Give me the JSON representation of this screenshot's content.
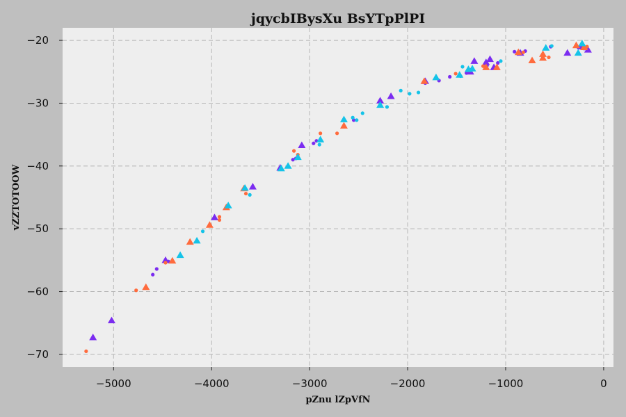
{
  "chart_data": {
    "type": "scatter",
    "title": "jqycbIBysXu BsYTpPlPI",
    "xlabel": "pZnu lZpVfN",
    "ylabel": "vZZTOTOOW",
    "xlim": [
      -5520,
      100
    ],
    "ylim": [
      -72,
      -18
    ],
    "xticks": [
      -5000,
      -4000,
      -3000,
      -2000,
      -1000,
      0
    ],
    "yticks": [
      -20,
      -30,
      -40,
      -50,
      -60,
      -70
    ],
    "xtick_labels": [
      "−5000",
      "−4000",
      "−3000",
      "−2000",
      "−1000",
      "0"
    ],
    "ytick_labels": [
      "−20",
      "−30",
      "−40",
      "−50",
      "−60",
      "−70"
    ],
    "grid": true,
    "background": "#eeeeee",
    "colors": [
      "#7b2cf0",
      "#ff6b3d",
      "#15c3e8"
    ],
    "series": [
      {
        "color": "#7b2cf0",
        "marker": "triangle",
        "points": [
          [
            -5210,
            -67.3
          ],
          [
            -5020,
            -64.6
          ],
          [
            -4470,
            -55.0
          ],
          [
            -3970,
            -48.2
          ],
          [
            -3580,
            -43.3
          ],
          [
            -3300,
            -40.3
          ],
          [
            -3080,
            -36.7
          ],
          [
            -2280,
            -29.6
          ],
          [
            -2170,
            -28.9
          ],
          [
            -1820,
            -26.5
          ],
          [
            -1360,
            -25.0
          ],
          [
            -1320,
            -23.3
          ],
          [
            -1200,
            -23.5
          ],
          [
            -1160,
            -23.0
          ],
          [
            -1120,
            -24.3
          ],
          [
            -850,
            -22.0
          ],
          [
            -370,
            -22.0
          ],
          [
            -230,
            -21.0
          ],
          [
            -160,
            -21.5
          ]
        ]
      },
      {
        "color": "#7b2cf0",
        "marker": "dot",
        "points": [
          [
            -4600,
            -57.3
          ],
          [
            -4560,
            -56.4
          ],
          [
            -4440,
            -55.2
          ],
          [
            -3140,
            -38.8
          ],
          [
            -3170,
            -39.0
          ],
          [
            -2960,
            -36.4
          ],
          [
            -2930,
            -36.0
          ],
          [
            -2550,
            -32.7
          ],
          [
            -1820,
            -26.8
          ],
          [
            -1680,
            -26.4
          ],
          [
            -1570,
            -25.8
          ],
          [
            -1400,
            -25.2
          ],
          [
            -1190,
            -24.0
          ],
          [
            -1080,
            -23.6
          ],
          [
            -910,
            -21.8
          ],
          [
            -800,
            -21.7
          ],
          [
            -540,
            -21.0
          ],
          [
            -260,
            -21.1
          ],
          [
            -200,
            -21.3
          ]
        ]
      },
      {
        "color": "#ff6b3d",
        "marker": "triangle",
        "points": [
          [
            -4670,
            -59.3
          ],
          [
            -4400,
            -55.1
          ],
          [
            -4220,
            -52.1
          ],
          [
            -4020,
            -49.4
          ],
          [
            -3850,
            -46.6
          ],
          [
            -3670,
            -43.6
          ],
          [
            -2650,
            -33.6
          ],
          [
            -1830,
            -26.5
          ],
          [
            -1200,
            -24.3
          ],
          [
            -1090,
            -24.3
          ],
          [
            -870,
            -21.9
          ],
          [
            -730,
            -23.2
          ],
          [
            -620,
            -22.2
          ],
          [
            -620,
            -22.8
          ],
          [
            -280,
            -20.8
          ],
          [
            -200,
            -21.1
          ]
        ]
      },
      {
        "color": "#ff6b3d",
        "marker": "dot",
        "points": [
          [
            -5280,
            -69.5
          ],
          [
            -4770,
            -59.8
          ],
          [
            -4470,
            -55.4
          ],
          [
            -3920,
            -48.1
          ],
          [
            -3920,
            -48.6
          ],
          [
            -3650,
            -44.4
          ],
          [
            -3120,
            -38.2
          ],
          [
            -3160,
            -37.6
          ],
          [
            -2890,
            -34.8
          ],
          [
            -2720,
            -34.8
          ],
          [
            -1510,
            -25.3
          ],
          [
            -1230,
            -24.1
          ],
          [
            -820,
            -21.9
          ],
          [
            -560,
            -22.7
          ],
          [
            -170,
            -21.0
          ]
        ]
      },
      {
        "color": "#15c3e8",
        "marker": "triangle",
        "points": [
          [
            -4320,
            -54.2
          ],
          [
            -4150,
            -51.9
          ],
          [
            -3830,
            -46.3
          ],
          [
            -3660,
            -43.5
          ],
          [
            -3290,
            -40.4
          ],
          [
            -3220,
            -40.0
          ],
          [
            -3120,
            -38.6
          ],
          [
            -2890,
            -35.8
          ],
          [
            -2650,
            -32.6
          ],
          [
            -2280,
            -30.3
          ],
          [
            -1710,
            -25.9
          ],
          [
            -1470,
            -25.5
          ],
          [
            -1380,
            -24.6
          ],
          [
            -1340,
            -24.5
          ],
          [
            -590,
            -21.2
          ],
          [
            -260,
            -22.0
          ],
          [
            -220,
            -20.5
          ]
        ]
      },
      {
        "color": "#15c3e8",
        "marker": "dot",
        "points": [
          [
            -4090,
            -50.4
          ],
          [
            -3610,
            -44.6
          ],
          [
            -2900,
            -36.6
          ],
          [
            -2560,
            -32.3
          ],
          [
            -2520,
            -32.7
          ],
          [
            -2460,
            -31.6
          ],
          [
            -2210,
            -30.6
          ],
          [
            -2070,
            -28.0
          ],
          [
            -1980,
            -28.5
          ],
          [
            -1890,
            -28.3
          ],
          [
            -1460,
            -25.7
          ],
          [
            -1440,
            -24.2
          ],
          [
            -1050,
            -23.3
          ],
          [
            -530,
            -20.9
          ]
        ]
      }
    ]
  }
}
